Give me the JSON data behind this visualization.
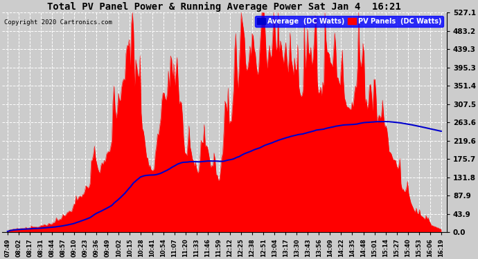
{
  "title": "Total PV Panel Power & Running Average Power Sat Jan 4  16:21",
  "copyright": "Copyright 2020 Cartronics.com",
  "legend_avg": "Average  (DC Watts)",
  "legend_pv": "PV Panels  (DC Watts)",
  "yticks": [
    0.0,
    43.9,
    87.9,
    131.8,
    175.7,
    219.6,
    263.6,
    307.5,
    351.4,
    395.3,
    439.3,
    483.2,
    527.1
  ],
  "ymax": 527.1,
  "bg_color": "#cccccc",
  "plot_bg": "#cccccc",
  "grid_color": "#ffffff",
  "pv_color": "#ff0000",
  "avg_color": "#0000cc",
  "xtick_labels": [
    "07:49",
    "08:02",
    "08:17",
    "08:31",
    "08:44",
    "08:57",
    "09:10",
    "09:23",
    "09:36",
    "09:49",
    "10:02",
    "10:15",
    "10:28",
    "10:41",
    "10:54",
    "11:07",
    "11:20",
    "11:33",
    "11:46",
    "11:59",
    "12:12",
    "12:25",
    "12:38",
    "12:51",
    "13:04",
    "13:17",
    "13:30",
    "13:43",
    "13:56",
    "14:09",
    "14:22",
    "14:35",
    "14:48",
    "15:01",
    "15:14",
    "15:27",
    "15:40",
    "15:53",
    "16:06",
    "16:19"
  ]
}
